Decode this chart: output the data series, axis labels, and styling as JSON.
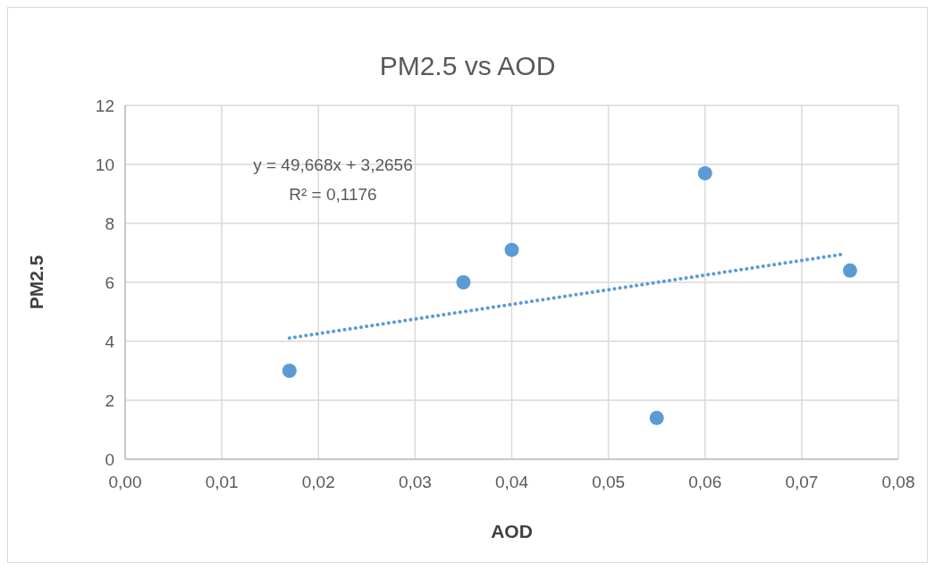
{
  "chart_data": {
    "type": "scatter",
    "title": "PM2.5 vs AOD",
    "xlabel": "AOD",
    "ylabel": "PM2.5",
    "xlim": [
      0,
      0.08
    ],
    "xticks": [
      {
        "value": 0,
        "label": "0,00"
      },
      {
        "value": 0.01,
        "label": "0,01"
      },
      {
        "value": 0.02,
        "label": "0,02"
      },
      {
        "value": 0.03,
        "label": "0,03"
      },
      {
        "value": 0.04,
        "label": "0,04"
      },
      {
        "value": 0.05,
        "label": "0,05"
      },
      {
        "value": 0.06,
        "label": "0,06"
      },
      {
        "value": 0.07,
        "label": "0,07"
      },
      {
        "value": 0.08,
        "label": "0,08"
      }
    ],
    "ylim": [
      0,
      12
    ],
    "yticks": [
      0,
      2,
      4,
      6,
      8,
      10,
      12
    ],
    "grid": true,
    "marker": "circle",
    "series": [
      {
        "type": "scatter",
        "color": "#5b9bd5",
        "x": [
          0.017,
          0.035,
          0.04,
          0.055,
          0.06,
          0.075
        ],
        "values": [
          3.0,
          6.0,
          7.1,
          1.4,
          9.7,
          6.4
        ]
      },
      {
        "type": "line",
        "color": "#5b9bd5",
        "line_style": "dotted",
        "marker": "none",
        "x": [
          0.017,
          0.074
        ],
        "values": [
          4.11,
          6.94
        ]
      }
    ],
    "annotations": [
      "y = 49,668x + 3,2656",
      "R² = 0,1176"
    ]
  }
}
